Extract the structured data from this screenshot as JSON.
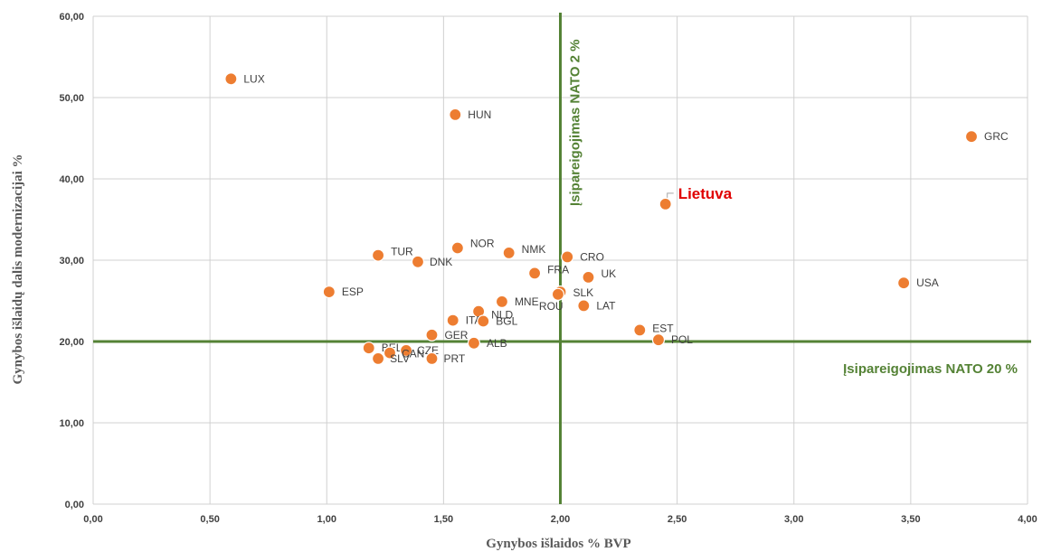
{
  "chart_data": {
    "type": "scatter",
    "title": "",
    "xlabel": "Gynybos išlaidos  % BVP",
    "ylabel": "Gynybos išlaidų dalis modernizacijai  %",
    "xlim": [
      0,
      4
    ],
    "ylim": [
      0,
      60
    ],
    "grid": true,
    "x_ticks": [
      "0,00",
      "0,50",
      "1,00",
      "1,50",
      "2,00",
      "2,50",
      "3,00",
      "3,50",
      "4,00"
    ],
    "y_ticks": [
      "0,00",
      "10,00",
      "20,00",
      "30,00",
      "40,00",
      "50,00",
      "60,00"
    ],
    "marker_color": "#ed7d31",
    "reference_color": "#548235",
    "highlight_color": "#e00000",
    "reference_lines": [
      {
        "axis": "x",
        "value": 2,
        "label": "Įsipareigojimas NATO 2 %"
      },
      {
        "axis": "y",
        "value": 20,
        "label": "Įsipareigojimas NATO 20 %"
      }
    ],
    "points": [
      {
        "label": "LUX",
        "x": 0.59,
        "y": 52.3
      },
      {
        "label": "HUN",
        "x": 1.55,
        "y": 47.9
      },
      {
        "label": "GRC",
        "x": 3.76,
        "y": 45.2
      },
      {
        "label": "Lietuva",
        "x": 2.45,
        "y": 36.9,
        "highlight": true
      },
      {
        "label": "TUR",
        "x": 1.22,
        "y": 30.6
      },
      {
        "label": "DNK",
        "x": 1.39,
        "y": 29.8
      },
      {
        "label": "NOR",
        "x": 1.56,
        "y": 31.5
      },
      {
        "label": "NMK",
        "x": 1.78,
        "y": 30.9
      },
      {
        "label": "CRO",
        "x": 2.03,
        "y": 30.4
      },
      {
        "label": "FRA",
        "x": 1.89,
        "y": 28.4
      },
      {
        "label": "UK",
        "x": 2.12,
        "y": 27.9
      },
      {
        "label": "SLK",
        "x": 2.0,
        "y": 26.1
      },
      {
        "label": "ROU",
        "x": 1.99,
        "y": 25.8
      },
      {
        "label": "ESP",
        "x": 1.01,
        "y": 26.1
      },
      {
        "label": "USA",
        "x": 3.47,
        "y": 27.2
      },
      {
        "label": "MNE",
        "x": 1.75,
        "y": 24.9
      },
      {
        "label": "LAT",
        "x": 2.1,
        "y": 24.4
      },
      {
        "label": "NLD",
        "x": 1.65,
        "y": 23.7
      },
      {
        "label": "ITA",
        "x": 1.54,
        "y": 22.6
      },
      {
        "label": "BGL",
        "x": 1.67,
        "y": 22.5
      },
      {
        "label": "EST",
        "x": 2.34,
        "y": 21.4
      },
      {
        "label": "GER",
        "x": 1.45,
        "y": 20.8
      },
      {
        "label": "POL",
        "x": 2.42,
        "y": 20.2
      },
      {
        "label": "ALB",
        "x": 1.63,
        "y": 19.8
      },
      {
        "label": "BEL",
        "x": 1.18,
        "y": 19.2
      },
      {
        "label": "CZE",
        "x": 1.34,
        "y": 18.9
      },
      {
        "label": "CAN",
        "x": 1.27,
        "y": 18.6
      },
      {
        "label": "SLV",
        "x": 1.22,
        "y": 17.9
      },
      {
        "label": "PRT",
        "x": 1.45,
        "y": 17.9
      }
    ]
  }
}
